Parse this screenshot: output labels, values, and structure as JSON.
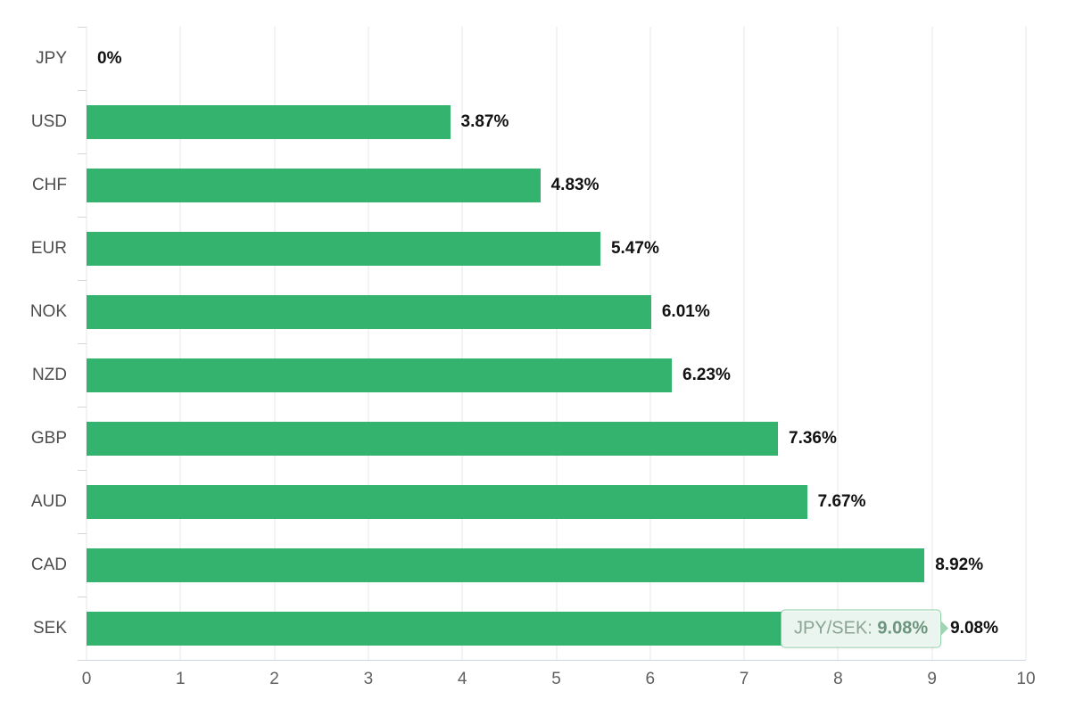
{
  "chart_data": {
    "type": "bar",
    "orientation": "horizontal",
    "title": "",
    "xlabel": "",
    "ylabel": "",
    "categories": [
      "JPY",
      "USD",
      "CHF",
      "EUR",
      "NOK",
      "NZD",
      "GBP",
      "AUD",
      "CAD",
      "SEK"
    ],
    "values": [
      0,
      3.87,
      4.83,
      5.47,
      6.01,
      6.23,
      7.36,
      7.67,
      8.92,
      9.08
    ],
    "value_labels": [
      "0%",
      "3.87%",
      "4.83%",
      "5.47%",
      "6.01%",
      "6.23%",
      "7.36%",
      "7.67%",
      "8.92%",
      "9.08%"
    ],
    "xlim": [
      0,
      10
    ],
    "x_ticks": [
      "0",
      "1",
      "2",
      "3",
      "4",
      "5",
      "6",
      "7",
      "8",
      "9",
      "10"
    ],
    "grid": true,
    "legend": "none",
    "bar_color": "#34b36e",
    "tooltip": {
      "label": "JPY/SEK:",
      "value": "9.08%",
      "target_category": "SEK",
      "target_value": 9.08
    }
  },
  "colors": {
    "background": "#ffffff",
    "gridline": "#e7e7e7",
    "axis_line": "#cfd6de",
    "category_label": "#4d4d4d",
    "tick_label": "#606060",
    "value_label": "#111111",
    "tooltip_border": "#8fd0a8",
    "tooltip_text": "#8ba396"
  }
}
